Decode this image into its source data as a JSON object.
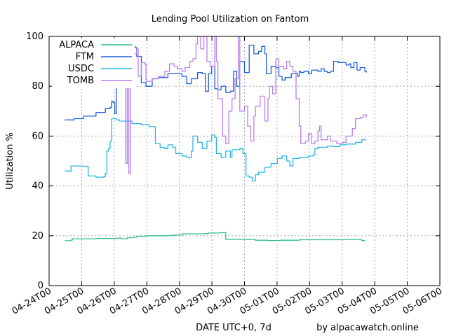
{
  "chart_data": {
    "type": "line",
    "title": "Lending Pool Utilization on Fantom",
    "ylabel": "Utilization %",
    "xlabel": "DATE UTC+0, 7d",
    "credit": "by alpacawatch.online",
    "ylim": [
      0,
      100
    ],
    "yticks": [
      0,
      20,
      40,
      60,
      80,
      100
    ],
    "xlim": [
      0,
      11
    ],
    "xticks": [
      "04-24T00",
      "04-25T00",
      "04-26T00",
      "04-27T00",
      "04-28T00",
      "04-29T00",
      "04-30T00",
      "05-01T00",
      "05-02T00",
      "05-03T00",
      "05-04T00",
      "05-05T00",
      "05-06T00"
    ],
    "grid": true,
    "legend_position": "top-left",
    "series": [
      {
        "name": "ALPACA",
        "color": "#2ebd88",
        "points": [
          [
            0.0,
            18.0
          ],
          [
            0.2,
            18.3
          ],
          [
            0.25,
            18.8
          ],
          [
            1.0,
            18.9
          ],
          [
            1.7,
            19.1
          ],
          [
            1.8,
            18.8
          ],
          [
            2.0,
            19.2
          ],
          [
            2.2,
            19.4
          ],
          [
            2.3,
            19.8
          ],
          [
            2.6,
            20.0
          ],
          [
            3.3,
            20.1
          ],
          [
            3.5,
            20.3
          ],
          [
            3.75,
            20.8
          ],
          [
            4.5,
            20.9
          ],
          [
            4.6,
            21.1
          ],
          [
            5.0,
            21.3
          ],
          [
            5.15,
            18.6
          ],
          [
            5.9,
            18.5
          ],
          [
            6.1,
            18.2
          ],
          [
            6.5,
            18.1
          ],
          [
            6.9,
            18.2
          ],
          [
            7.5,
            18.4
          ],
          [
            9.0,
            18.5
          ],
          [
            9.5,
            18.1
          ],
          [
            9.6,
            18.0
          ]
        ]
      },
      {
        "name": "FTM",
        "color": "#1f5fd6",
        "points": [
          [
            0.0,
            66.5
          ],
          [
            0.3,
            67.0
          ],
          [
            0.6,
            68.0
          ],
          [
            1.0,
            69.5
          ],
          [
            1.3,
            71.0
          ],
          [
            1.45,
            71.5
          ],
          [
            1.5,
            74.0
          ],
          [
            1.55,
            73.5
          ],
          [
            1.6,
            69.0
          ],
          [
            1.65,
            84.0
          ],
          [
            1.85,
            91.0
          ],
          [
            1.9,
            97.0
          ],
          [
            2.0,
            97.5
          ],
          [
            2.1,
            94.0
          ],
          [
            2.2,
            96.0
          ],
          [
            2.25,
            95.5
          ],
          [
            2.3,
            92.0
          ],
          [
            2.45,
            81.5
          ],
          [
            2.6,
            80.0
          ],
          [
            2.8,
            83.0
          ],
          [
            3.0,
            83.5
          ],
          [
            3.3,
            85.0
          ],
          [
            3.5,
            85.0
          ],
          [
            3.75,
            84.0
          ],
          [
            3.9,
            81.0
          ],
          [
            4.05,
            83.0
          ],
          [
            4.25,
            85.5
          ],
          [
            4.4,
            85.0
          ],
          [
            4.5,
            78.0
          ],
          [
            4.6,
            85.0
          ],
          [
            4.7,
            88.0
          ],
          [
            4.8,
            79.0
          ],
          [
            4.9,
            78.5
          ],
          [
            5.0,
            80.0
          ],
          [
            5.15,
            77.5
          ],
          [
            5.3,
            78.0
          ],
          [
            5.4,
            86.0
          ],
          [
            5.5,
            80.0
          ],
          [
            5.6,
            90.0
          ],
          [
            5.75,
            85.5
          ],
          [
            5.9,
            96.5
          ],
          [
            6.05,
            93.0
          ],
          [
            6.2,
            94.0
          ],
          [
            6.3,
            96.0
          ],
          [
            6.4,
            93.0
          ],
          [
            6.45,
            85.0
          ],
          [
            6.6,
            88.0
          ],
          [
            6.75,
            87.5
          ],
          [
            6.85,
            84.0
          ],
          [
            6.95,
            82.5
          ],
          [
            7.05,
            83.5
          ],
          [
            7.25,
            85.0
          ],
          [
            7.45,
            84.0
          ],
          [
            7.5,
            86.0
          ],
          [
            7.55,
            85.5
          ],
          [
            7.65,
            86.0
          ],
          [
            7.8,
            85.0
          ],
          [
            7.9,
            86.5
          ],
          [
            8.1,
            86.0
          ],
          [
            8.2,
            87.0
          ],
          [
            8.3,
            86.0
          ],
          [
            8.4,
            85.5
          ],
          [
            8.5,
            86.0
          ],
          [
            8.6,
            90.0
          ],
          [
            8.75,
            89.5
          ],
          [
            9.0,
            88.5
          ],
          [
            9.1,
            89.0
          ],
          [
            9.15,
            87.5
          ],
          [
            9.25,
            89.5
          ],
          [
            9.35,
            86.5
          ],
          [
            9.45,
            87.5
          ],
          [
            9.6,
            86.0
          ],
          [
            9.65,
            85.5
          ]
        ]
      },
      {
        "name": "USDC",
        "color": "#27b6e8",
        "points": [
          [
            0.0,
            46.0
          ],
          [
            0.15,
            45.8
          ],
          [
            0.2,
            48.0
          ],
          [
            0.5,
            48.0
          ],
          [
            0.6,
            47.8
          ],
          [
            0.75,
            44.0
          ],
          [
            1.0,
            43.5
          ],
          [
            1.25,
            43.7
          ],
          [
            1.3,
            45.0
          ],
          [
            1.35,
            54.0
          ],
          [
            1.4,
            55.0
          ],
          [
            1.45,
            58.0
          ],
          [
            1.5,
            67.0
          ],
          [
            1.65,
            66.5
          ],
          [
            1.75,
            66.0
          ],
          [
            2.0,
            66.0
          ],
          [
            2.15,
            65.0
          ],
          [
            2.45,
            64.5
          ],
          [
            2.7,
            63.8
          ],
          [
            2.9,
            57.0
          ],
          [
            3.05,
            55.5
          ],
          [
            3.2,
            55.0
          ],
          [
            3.3,
            56.5
          ],
          [
            3.45,
            55.5
          ],
          [
            3.55,
            53.0
          ],
          [
            3.75,
            52.0
          ],
          [
            3.9,
            51.5
          ],
          [
            4.05,
            54.0
          ],
          [
            4.1,
            60.0
          ],
          [
            4.25,
            57.5
          ],
          [
            4.4,
            55.0
          ],
          [
            4.55,
            58.0
          ],
          [
            4.7,
            60.5
          ],
          [
            4.8,
            59.5
          ],
          [
            4.85,
            53.0
          ],
          [
            5.0,
            51.5
          ],
          [
            5.15,
            54.0
          ],
          [
            5.3,
            51.5
          ],
          [
            5.35,
            54.5
          ],
          [
            5.6,
            55.0
          ],
          [
            5.7,
            53.0
          ],
          [
            5.8,
            44.0
          ],
          [
            5.9,
            43.5
          ],
          [
            6.0,
            42.0
          ],
          [
            6.1,
            44.5
          ],
          [
            6.2,
            45.5
          ],
          [
            6.4,
            47.5
          ],
          [
            6.6,
            49.0
          ],
          [
            6.8,
            51.0
          ],
          [
            6.95,
            52.0
          ],
          [
            7.1,
            50.0
          ],
          [
            7.2,
            48.0
          ],
          [
            7.3,
            51.0
          ],
          [
            7.5,
            51.5
          ],
          [
            7.8,
            52.0
          ],
          [
            7.95,
            52.5
          ],
          [
            8.0,
            55.0
          ],
          [
            8.1,
            55.5
          ],
          [
            8.4,
            56.0
          ],
          [
            8.6,
            55.8
          ],
          [
            8.8,
            56.5
          ],
          [
            9.0,
            56.8
          ],
          [
            9.3,
            57.5
          ],
          [
            9.5,
            58.5
          ],
          [
            9.65,
            58.5
          ]
        ]
      },
      {
        "name": "TOMB",
        "color": "#b87ef0",
        "points": [
          [
            0.25,
            88.0
          ],
          [
            0.4,
            88.5
          ],
          [
            0.55,
            87.0
          ],
          [
            0.7,
            86.5
          ],
          [
            0.9,
            85.5
          ],
          [
            1.2,
            85.0
          ],
          [
            1.45,
            86.0
          ],
          [
            1.6,
            92.0
          ],
          [
            1.75,
            94.0
          ],
          [
            1.85,
            98.0
          ],
          [
            1.9,
            93.0
          ],
          [
            1.95,
            49.0
          ],
          [
            2.0,
            97.0
          ],
          [
            2.05,
            45.0
          ],
          [
            2.1,
            98.0
          ],
          [
            2.2,
            93.0
          ],
          [
            2.3,
            95.0
          ],
          [
            2.35,
            84.0
          ],
          [
            2.45,
            89.5
          ],
          [
            2.55,
            89.0
          ],
          [
            2.6,
            82.0
          ],
          [
            2.8,
            83.0
          ],
          [
            3.0,
            84.0
          ],
          [
            3.2,
            86.0
          ],
          [
            3.35,
            89.0
          ],
          [
            3.5,
            88.0
          ],
          [
            3.6,
            87.0
          ],
          [
            3.75,
            86.0
          ],
          [
            3.85,
            87.5
          ],
          [
            4.0,
            90.0
          ],
          [
            4.1,
            91.0
          ],
          [
            4.2,
            97.0
          ],
          [
            4.25,
            100.0
          ],
          [
            4.35,
            95.0
          ],
          [
            4.45,
            100.0
          ],
          [
            4.55,
            90.0
          ],
          [
            4.65,
            88.0
          ],
          [
            4.8,
            100.0
          ],
          [
            4.85,
            90.0
          ],
          [
            4.9,
            75.0
          ],
          [
            5.05,
            60.0
          ],
          [
            5.15,
            57.0
          ],
          [
            5.25,
            70.0
          ],
          [
            5.35,
            75.0
          ],
          [
            5.45,
            83.0
          ],
          [
            5.55,
            100.0
          ],
          [
            5.6,
            70.0
          ],
          [
            5.75,
            72.0
          ],
          [
            5.85,
            64.0
          ],
          [
            5.95,
            58.0
          ],
          [
            6.05,
            68.0
          ],
          [
            6.1,
            72.0
          ],
          [
            6.25,
            76.0
          ],
          [
            6.4,
            66.0
          ],
          [
            6.5,
            75.0
          ],
          [
            6.55,
            80.0
          ],
          [
            6.65,
            77.0
          ],
          [
            6.75,
            91.0
          ],
          [
            6.85,
            88.0
          ],
          [
            7.0,
            87.0
          ],
          [
            7.1,
            90.0
          ],
          [
            7.2,
            88.0
          ],
          [
            7.3,
            86.0
          ],
          [
            7.4,
            75.0
          ],
          [
            7.5,
            64.0
          ],
          [
            7.55,
            57.0
          ],
          [
            7.7,
            58.0
          ],
          [
            7.8,
            61.0
          ],
          [
            7.9,
            57.0
          ],
          [
            8.0,
            58.0
          ],
          [
            8.1,
            62.0
          ],
          [
            8.15,
            64.0
          ],
          [
            8.2,
            58.5
          ],
          [
            8.4,
            60.0
          ],
          [
            8.5,
            58.0
          ],
          [
            8.7,
            57.0
          ],
          [
            8.9,
            57.5
          ],
          [
            9.0,
            60.0
          ],
          [
            9.2,
            63.0
          ],
          [
            9.3,
            67.0
          ],
          [
            9.45,
            67.5
          ],
          [
            9.55,
            68.5
          ],
          [
            9.65,
            67.5
          ]
        ]
      }
    ]
  }
}
